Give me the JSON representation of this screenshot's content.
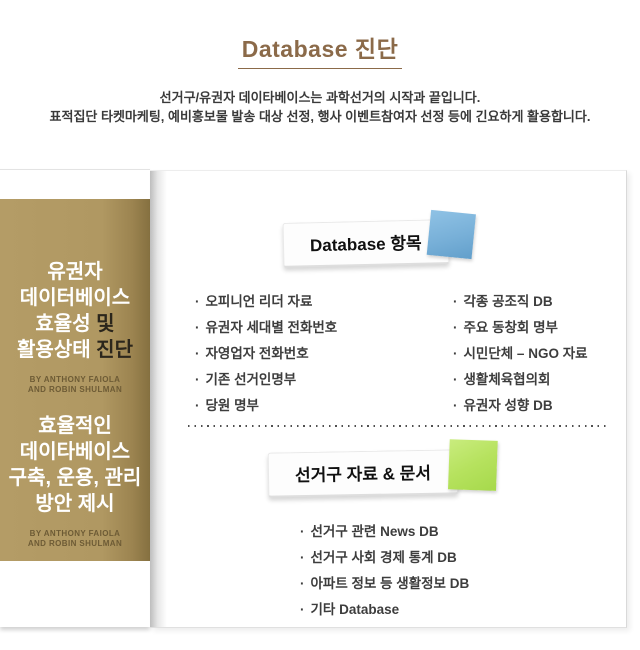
{
  "colors": {
    "title_brown": "#8b6a49",
    "gold_cover": "#b09760",
    "sticky_blue": "#78b0d8",
    "sticky_green": "#b6e25e"
  },
  "header": {
    "title": "Database 진단",
    "intro_line1": "선거구/유권자 데이타베이스는 과학선거의 시작과 끝입니다.",
    "intro_line2": "표적집단 타켓마케팅, 예비홍보물 발송 대상 선정, 행사 이벤트참여자 선정 등에 긴요하게 활용합니다."
  },
  "book_cover": {
    "block1": {
      "line1": "유권자",
      "line2": "데이터베이스",
      "line3_light": "효율성",
      "line3_dark": " 및",
      "line4_light": "활용상태",
      "line4_dark": " 진단"
    },
    "byline_line1": "BY ANTHONY FAIOLA",
    "byline_line2": "AND ROBIN SHULMAN",
    "block2": {
      "line1": "효율적인",
      "line2": "데이타베이스",
      "line3": "구축, 운용, 관리",
      "line4": "방안 제시"
    }
  },
  "content": {
    "bullet": "·",
    "db_section": {
      "title": "Database 항목",
      "items_left": [
        "오피니언 리더 자료",
        "유권자 세대별 전화번호",
        "자영업자 전화번호",
        "기존 선거인명부",
        "당원 명부"
      ],
      "items_right": [
        "각종 공조직 DB",
        "주요 동창회 명부",
        "시민단체 – NGO 자료",
        "생활체육협의회",
        "유권자 성향 DB"
      ]
    },
    "doc_section": {
      "title": "선거구 자료 & 문서",
      "items": [
        "선거구 관련 News DB",
        "선거구 사회 경제 통계  DB",
        "아파트 정보 등 생활정보 DB",
        "기타 Database"
      ]
    }
  }
}
